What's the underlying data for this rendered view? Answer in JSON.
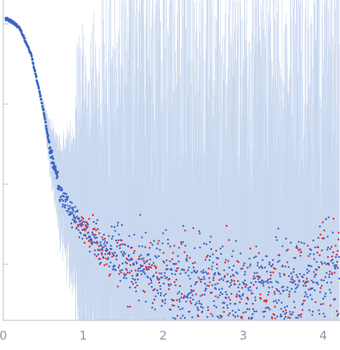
{
  "chart_data": {
    "type": "scatter",
    "title": "",
    "xlabel": "",
    "ylabel": "",
    "xlim": [
      0,
      4.2
    ],
    "x_ticks": [
      0,
      1,
      2,
      3,
      4
    ],
    "x_tick_labels": [
      "0",
      "1",
      "2",
      "3",
      "4"
    ],
    "y_scale": "log",
    "y_ticks_unlabeled": 4,
    "grid": false,
    "legend": "none",
    "colors": {
      "points": "#3a66c4",
      "negative_points": "#e0282e",
      "error_bars": "#c9d8ef",
      "axes": "#b9c2cf",
      "tick_labels": "#8a97a8"
    },
    "series": [
      {
        "description_key": "scattering-intensity",
        "x_range": [
          0.03,
          4.2
        ],
        "profile": [
          {
            "x": 0.05,
            "y": 1.0
          },
          {
            "x": 0.2,
            "y": 0.82
          },
          {
            "x": 0.35,
            "y": 0.42
          },
          {
            "x": 0.5,
            "y": 0.11
          },
          {
            "x": 0.6,
            "y": 0.035
          },
          {
            "x": 0.7,
            "y": 0.016
          },
          {
            "x": 0.85,
            "y": 0.009
          },
          {
            "x": 1.0,
            "y": 0.006
          },
          {
            "x": 1.3,
            "y": 0.0035
          },
          {
            "x": 1.7,
            "y": 0.0022
          },
          {
            "x": 2.2,
            "y": 0.0016
          },
          {
            "x": 3.0,
            "y": 0.0013
          },
          {
            "x": 3.6,
            "y": 0.0015
          },
          {
            "x": 4.2,
            "y": 0.0025
          }
        ]
      }
    ]
  }
}
